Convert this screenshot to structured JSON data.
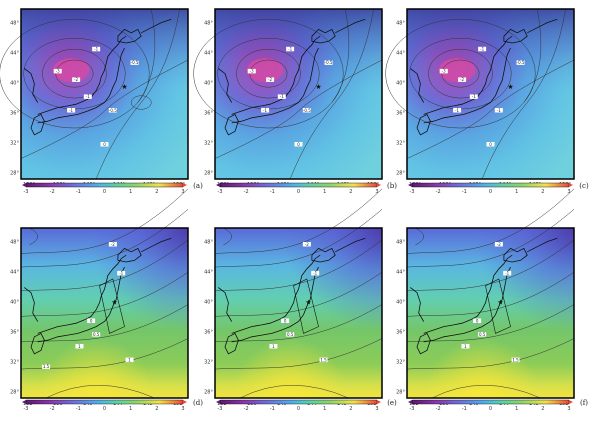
{
  "figure": {
    "lat_ticks": [
      "48°",
      "44°",
      "40°",
      "36°",
      "32°",
      "28°"
    ],
    "lon_ticks": [
      "132°",
      "136°",
      "140°",
      "144°",
      "148°",
      "152°"
    ],
    "colorbar_ticks": [
      "-3",
      "-2",
      "-1",
      "0",
      "1",
      "2",
      "3"
    ],
    "colorbar_colors": [
      "#5a1a70",
      "#8a35a8",
      "#6e6fd8",
      "#4fb3e6",
      "#5fd0a0",
      "#8ed46a",
      "#f0e34a",
      "#e8483a"
    ],
    "panels": [
      {
        "label": "(a)",
        "field": "negative",
        "contour_labels": [
          "-3",
          "-2",
          "-1",
          "-1",
          "-0.5",
          "-0.5",
          "-1",
          "0"
        ]
      },
      {
        "label": "(b)",
        "field": "negative",
        "contour_labels": [
          "-3",
          "-2",
          "-1",
          "-1",
          "-0.5",
          "-0.5",
          "-1",
          "0"
        ]
      },
      {
        "label": "(c)",
        "field": "negative",
        "contour_labels": [
          "-3",
          "-2",
          "-1",
          "-1",
          "-0.5",
          "-1",
          "-1",
          "0"
        ]
      },
      {
        "label": "(d)",
        "field": "positive",
        "contour_labels": [
          "-2",
          "-1",
          "0",
          "0.5",
          "1",
          "1",
          "1.5"
        ]
      },
      {
        "label": "(e)",
        "field": "positive",
        "contour_labels": [
          "-2",
          "-1",
          "0",
          "0.5",
          "1",
          "1.5"
        ]
      },
      {
        "label": "(f)",
        "field": "positive",
        "contour_labels": [
          "-2",
          "-1",
          "0",
          "0.5",
          "1",
          "1.5"
        ]
      }
    ]
  }
}
